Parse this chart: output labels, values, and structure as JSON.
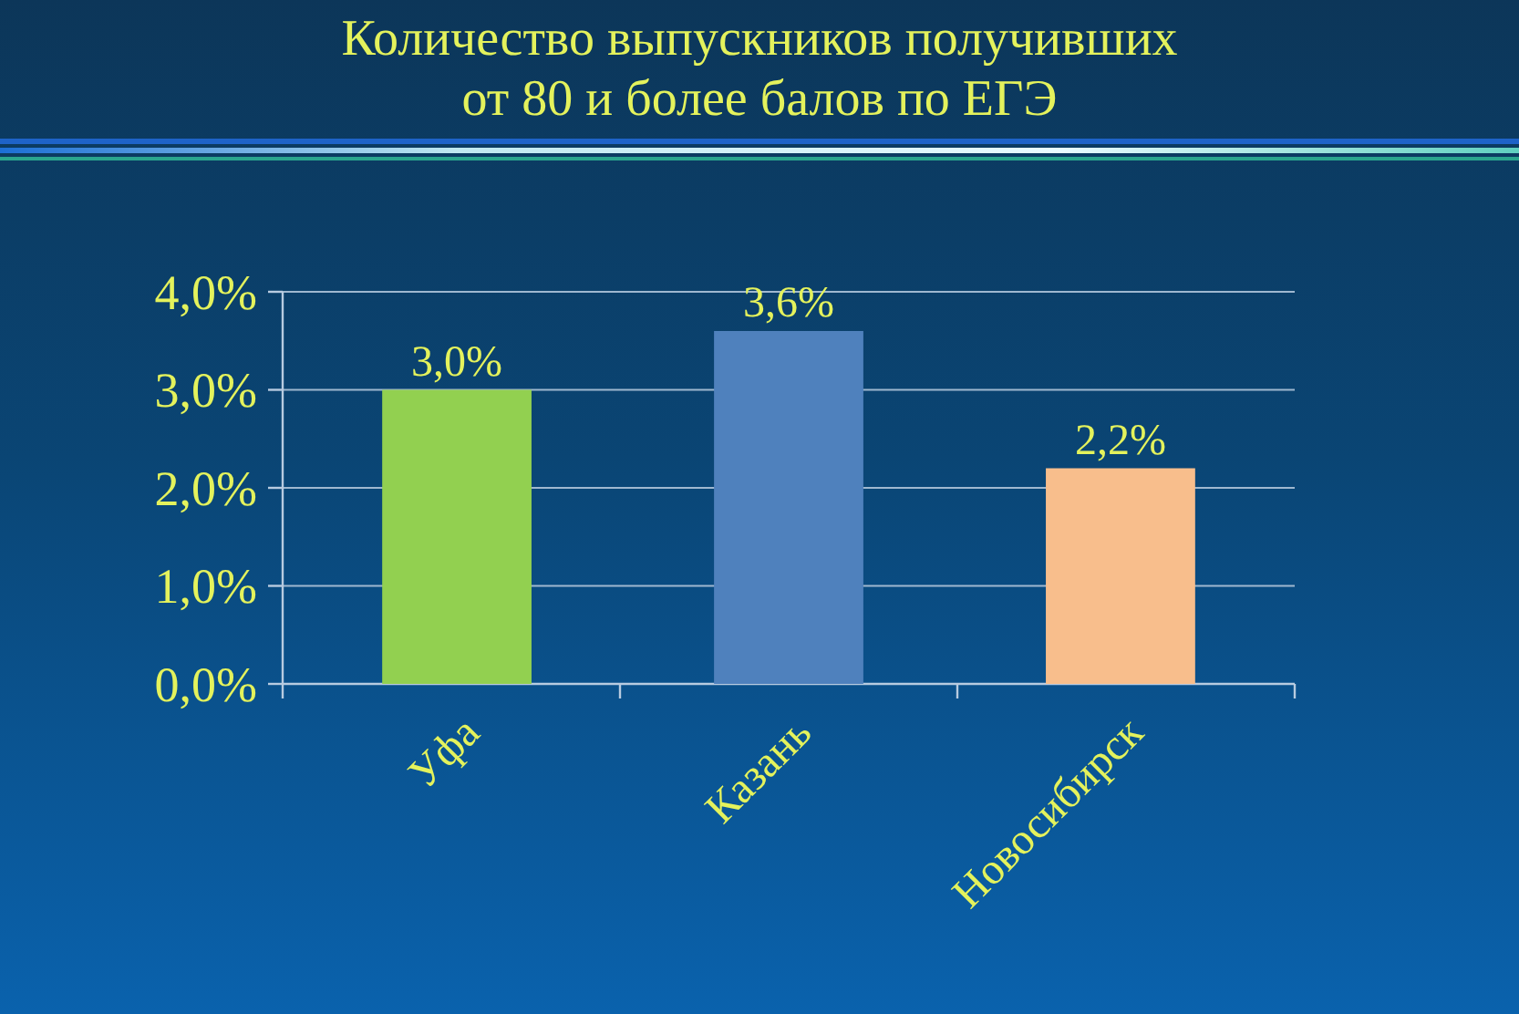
{
  "chart_data": {
    "type": "bar",
    "title": "Количество выпускников получивших\nот 80 и более балов по ЕГЭ",
    "categories": [
      "Уфа",
      "Казань",
      "Новосибирск"
    ],
    "values": [
      3.0,
      3.6,
      2.2
    ],
    "colors": [
      "#92d050",
      "#4f81bd",
      "#f8be8c"
    ],
    "value_labels": [
      "3,0%",
      "3,6%",
      "2,2%"
    ],
    "ylim": [
      0,
      4
    ],
    "yticks": [
      {
        "value": 0,
        "label": "0,0%"
      },
      {
        "value": 1,
        "label": "1,0%"
      },
      {
        "value": 2,
        "label": "2,0%"
      },
      {
        "value": 3,
        "label": "3,0%"
      },
      {
        "value": 4,
        "label": "4,0%"
      }
    ],
    "grid": "y"
  }
}
